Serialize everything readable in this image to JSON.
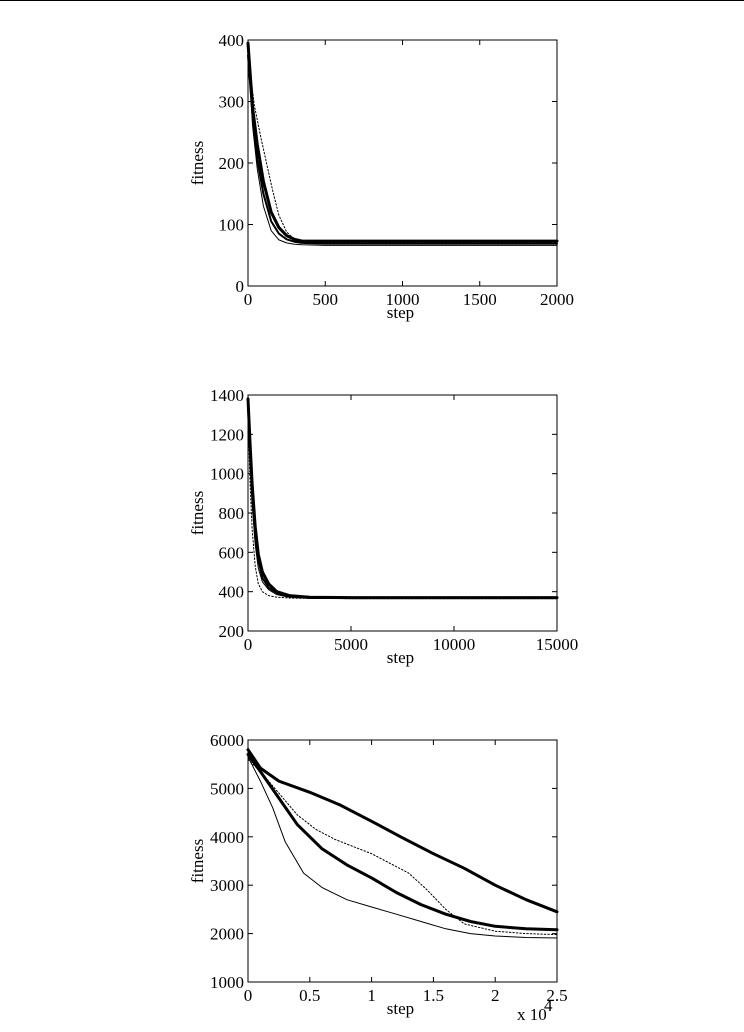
{
  "chart_data": [
    {
      "type": "line",
      "xlabel": "step",
      "ylabel": "fitness",
      "xlim": [
        0,
        2000
      ],
      "ylim": [
        0,
        400
      ],
      "xticks": [
        "0",
        "500",
        "1000",
        "1500",
        "2000"
      ],
      "yticks": [
        "0",
        "100",
        "200",
        "300",
        "400"
      ],
      "grid": false,
      "series": [
        {
          "style": "thick",
          "x": [
            0,
            30,
            60,
            100,
            150,
            200,
            250,
            300,
            350,
            500,
            1000,
            2000
          ],
          "y": [
            395,
            290,
            230,
            170,
            120,
            95,
            82,
            76,
            73,
            73,
            73,
            73
          ]
        },
        {
          "style": "thin",
          "x": [
            0,
            30,
            60,
            100,
            150,
            200,
            250,
            300,
            350,
            500,
            1000,
            2000
          ],
          "y": [
            385,
            260,
            190,
            130,
            90,
            75,
            70,
            68,
            67,
            66,
            66,
            66
          ]
        },
        {
          "style": "dotted",
          "x": [
            0,
            40,
            80,
            120,
            160,
            200,
            250,
            300,
            350,
            500,
            1000,
            2000
          ],
          "y": [
            380,
            295,
            245,
            200,
            155,
            115,
            88,
            76,
            72,
            70,
            70,
            70
          ]
        },
        {
          "style": "medium",
          "x": [
            0,
            30,
            60,
            100,
            150,
            200,
            250,
            300,
            350,
            500,
            1000,
            2000
          ],
          "y": [
            375,
            275,
            205,
            150,
            105,
            85,
            76,
            72,
            70,
            69,
            69,
            69
          ]
        }
      ]
    },
    {
      "type": "line",
      "xlabel": "step",
      "ylabel": "fitness",
      "xlim": [
        0,
        15000
      ],
      "ylim": [
        200,
        1400
      ],
      "xticks": [
        "0",
        "5000",
        "10000",
        "15000"
      ],
      "yticks": [
        "200",
        "400",
        "600",
        "800",
        "1000",
        "1200",
        "1400"
      ],
      "grid": false,
      "series": [
        {
          "style": "thick",
          "x": [
            0,
            100,
            200,
            350,
            500,
            700,
            1000,
            1400,
            2000,
            3000,
            5000,
            10000,
            15000
          ],
          "y": [
            1380,
            1150,
            950,
            730,
            590,
            500,
            440,
            400,
            380,
            372,
            370,
            370,
            370
          ]
        },
        {
          "style": "thin",
          "x": [
            0,
            100,
            200,
            350,
            500,
            700,
            1000,
            1400,
            2000,
            3000,
            5000,
            10000,
            15000
          ],
          "y": [
            1350,
            1050,
            850,
            640,
            520,
            450,
            410,
            385,
            372,
            366,
            365,
            365,
            365
          ]
        },
        {
          "style": "dotted",
          "x": [
            0,
            100,
            200,
            350,
            500,
            700,
            1000,
            1400,
            2000,
            3000,
            5000,
            10000,
            15000
          ],
          "y": [
            1300,
            950,
            720,
            530,
            440,
            400,
            380,
            372,
            368,
            366,
            365,
            365,
            365
          ]
        },
        {
          "style": "medium",
          "x": [
            0,
            100,
            200,
            350,
            500,
            700,
            1000,
            1400,
            2000,
            3000,
            5000,
            10000,
            15000
          ],
          "y": [
            1360,
            1100,
            900,
            680,
            560,
            470,
            420,
            392,
            376,
            369,
            368,
            368,
            368
          ]
        }
      ]
    },
    {
      "type": "line",
      "xlabel": "step",
      "ylabel": "fitness",
      "xlim": [
        0,
        2.5
      ],
      "ylim": [
        1000,
        6000
      ],
      "xticks": [
        "0",
        "0.5",
        "1",
        "1.5",
        "2",
        "2.5"
      ],
      "yticks": [
        "1000",
        "2000",
        "3000",
        "4000",
        "5000",
        "6000"
      ],
      "x_multiplier": "x 10",
      "x_multiplier_exp": "4",
      "grid": false,
      "series": [
        {
          "style": "thick",
          "x": [
            0,
            0.1,
            0.25,
            0.5,
            0.75,
            1.0,
            1.25,
            1.5,
            1.75,
            2.0,
            2.25,
            2.5
          ],
          "y": [
            5800,
            5420,
            5150,
            4920,
            4650,
            4320,
            3980,
            3650,
            3350,
            3000,
            2700,
            2450
          ]
        },
        {
          "style": "thick",
          "x": [
            0,
            0.1,
            0.25,
            0.4,
            0.6,
            0.8,
            1.0,
            1.2,
            1.4,
            1.6,
            1.8,
            2.0,
            2.25,
            2.5
          ],
          "y": [
            5700,
            5350,
            4800,
            4250,
            3750,
            3420,
            3150,
            2850,
            2600,
            2400,
            2250,
            2150,
            2100,
            2080
          ]
        },
        {
          "style": "thin",
          "x": [
            0,
            0.1,
            0.2,
            0.3,
            0.45,
            0.6,
            0.8,
            1.0,
            1.2,
            1.4,
            1.6,
            1.8,
            2.0,
            2.25,
            2.5
          ],
          "y": [
            5650,
            5150,
            4600,
            3900,
            3250,
            2950,
            2700,
            2550,
            2400,
            2250,
            2100,
            2000,
            1950,
            1920,
            1910
          ]
        },
        {
          "style": "dotted",
          "x": [
            0,
            0.1,
            0.25,
            0.4,
            0.55,
            0.7,
            0.85,
            1.0,
            1.15,
            1.3,
            1.45,
            1.6,
            1.75,
            2.0,
            2.25,
            2.5
          ],
          "y": [
            5600,
            5350,
            4900,
            4450,
            4150,
            3950,
            3800,
            3650,
            3450,
            3250,
            2900,
            2500,
            2200,
            2050,
            2000,
            1980
          ]
        }
      ]
    }
  ]
}
